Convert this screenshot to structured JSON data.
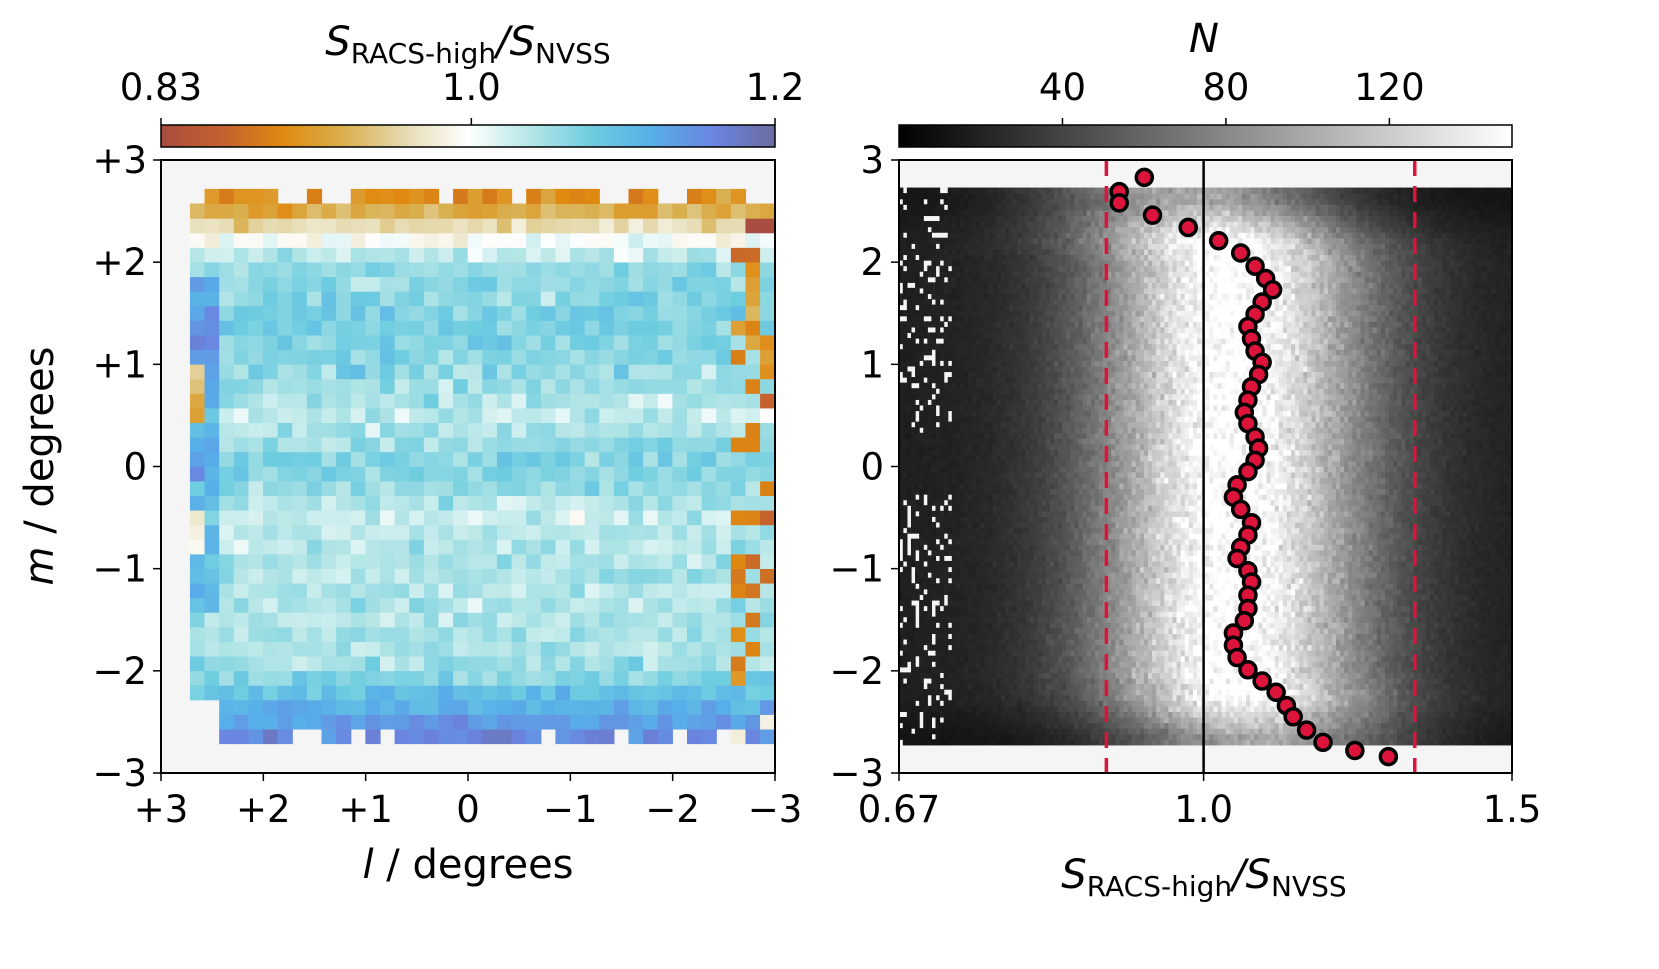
{
  "figure": {
    "panels": 2
  },
  "chart_data": [
    {
      "type": "heatmap",
      "name": "flux-ratio-map",
      "xlabel_var": "l",
      "xlabel_unit": " / degrees",
      "ylabel_var": "m",
      "ylabel_unit": " / degrees",
      "xlim": [
        3,
        -3
      ],
      "ylim": [
        -3,
        3
      ],
      "xticks": [
        3,
        2,
        1,
        0,
        -1,
        -2,
        -3
      ],
      "xtick_labels": [
        "+3",
        "+2",
        "+1",
        "0",
        "−1",
        "−2",
        "−3"
      ],
      "yticks": [
        3,
        2,
        1,
        0,
        -1,
        -2,
        -3
      ],
      "ytick_labels": [
        "+3",
        "+2",
        "+1",
        "0",
        "−1",
        "−2",
        "−3"
      ],
      "grid": false,
      "colorbar": {
        "position": "top",
        "label_main": "S",
        "label_sub1": "RACS-high",
        "label_slash": "/",
        "label_main2": "S",
        "label_sub2": "NVSS",
        "scale": "log",
        "range": [
          0.83,
          1.2
        ],
        "ticks": [
          0.83,
          1.0,
          1.2
        ],
        "tick_labels": [
          "0.83",
          "1.0",
          "1.2"
        ],
        "colors": [
          "#a84d3f",
          "#c4602f",
          "#e08a10",
          "#d9b050",
          "#e6dcb4",
          "#ffffff",
          "#b6e6e6",
          "#6fcde0",
          "#58aee8",
          "#6a84e0",
          "#6c6ca0"
        ]
      },
      "grid_bins": [
        42,
        42
      ],
      "row_mean_ratio_by_m": [
        {
          "m": 2.6,
          "ratio": 0.9
        },
        {
          "m": 2.4,
          "ratio": 0.95
        },
        {
          "m": 2.2,
          "ratio": 1.0
        },
        {
          "m": 2.0,
          "ratio": 1.05
        },
        {
          "m": 1.5,
          "ratio": 1.07
        },
        {
          "m": 1.0,
          "ratio": 1.06
        },
        {
          "m": 0.5,
          "ratio": 1.03
        },
        {
          "m": 0.0,
          "ratio": 1.07
        },
        {
          "m": -0.5,
          "ratio": 1.03
        },
        {
          "m": -1.0,
          "ratio": 1.04
        },
        {
          "m": -1.5,
          "ratio": 1.04
        },
        {
          "m": -2.0,
          "ratio": 1.05
        },
        {
          "m": -2.3,
          "ratio": 1.1
        },
        {
          "m": -2.6,
          "ratio": 1.15
        }
      ],
      "coverage_m_range": [
        -2.75,
        2.75
      ],
      "coverage_l_range": [
        -3,
        2.75
      ]
    },
    {
      "type": "heatmap",
      "name": "ratio-vs-m-histogram",
      "xlabel_main": "S",
      "xlabel_sub1": "RACS-high",
      "xlabel_slash": "/",
      "xlabel_main2": "S",
      "xlabel_sub2": "NVSS",
      "xscale": "log",
      "xlim": [
        0.67,
        1.5
      ],
      "ylim": [
        -3,
        3
      ],
      "xticks": [
        0.67,
        1.0,
        1.5
      ],
      "xtick_labels": [
        "0.67",
        "1.0",
        "1.5"
      ],
      "yticks": [
        3,
        2,
        1,
        0,
        -1,
        -2,
        -3
      ],
      "ytick_labels": [
        "3",
        "2",
        "1",
        "0",
        "−1",
        "−2",
        "−3"
      ],
      "grid": false,
      "colorbar": {
        "position": "top",
        "label": "N",
        "range": [
          0,
          150
        ],
        "ticks": [
          40,
          80,
          120
        ],
        "tick_labels": [
          "40",
          "80",
          "120"
        ],
        "colors": [
          "#000000",
          "#ffffff"
        ]
      },
      "reference_lines": [
        {
          "type": "solid",
          "x": 1.0,
          "color": "#000000"
        },
        {
          "type": "dashed",
          "x": 0.88,
          "color": "#dc143c"
        },
        {
          "type": "dashed",
          "x": 1.32,
          "color": "#dc143c"
        }
      ],
      "density_peak_ratio": 1.04,
      "density_width_log": 0.13,
      "density_coverage_m_range": [
        -2.75,
        2.7
      ],
      "marker_color": "#dc143c",
      "series": [
        {
          "name": "binned-median",
          "points": [
            {
              "x": 0.925,
              "y": 2.83
            },
            {
              "x": 0.895,
              "y": 2.69
            },
            {
              "x": 0.895,
              "y": 2.58
            },
            {
              "x": 0.935,
              "y": 2.46
            },
            {
              "x": 0.98,
              "y": 2.34
            },
            {
              "x": 1.02,
              "y": 2.21
            },
            {
              "x": 1.05,
              "y": 2.09
            },
            {
              "x": 1.07,
              "y": 1.96
            },
            {
              "x": 1.085,
              "y": 1.84
            },
            {
              "x": 1.095,
              "y": 1.73
            },
            {
              "x": 1.08,
              "y": 1.61
            },
            {
              "x": 1.07,
              "y": 1.49
            },
            {
              "x": 1.06,
              "y": 1.37
            },
            {
              "x": 1.065,
              "y": 1.25
            },
            {
              "x": 1.07,
              "y": 1.13
            },
            {
              "x": 1.08,
              "y": 1.02
            },
            {
              "x": 1.075,
              "y": 0.9
            },
            {
              "x": 1.065,
              "y": 0.78
            },
            {
              "x": 1.06,
              "y": 0.65
            },
            {
              "x": 1.055,
              "y": 0.53
            },
            {
              "x": 1.06,
              "y": 0.42
            },
            {
              "x": 1.07,
              "y": 0.29
            },
            {
              "x": 1.075,
              "y": 0.18
            },
            {
              "x": 1.07,
              "y": 0.06
            },
            {
              "x": 1.06,
              "y": -0.05
            },
            {
              "x": 1.045,
              "y": -0.18
            },
            {
              "x": 1.04,
              "y": -0.3
            },
            {
              "x": 1.05,
              "y": -0.42
            },
            {
              "x": 1.065,
              "y": -0.55
            },
            {
              "x": 1.06,
              "y": -0.67
            },
            {
              "x": 1.05,
              "y": -0.79
            },
            {
              "x": 1.045,
              "y": -0.9
            },
            {
              "x": 1.06,
              "y": -1.02
            },
            {
              "x": 1.065,
              "y": -1.13
            },
            {
              "x": 1.06,
              "y": -1.26
            },
            {
              "x": 1.06,
              "y": -1.39
            },
            {
              "x": 1.055,
              "y": -1.51
            },
            {
              "x": 1.04,
              "y": -1.63
            },
            {
              "x": 1.04,
              "y": -1.75
            },
            {
              "x": 1.045,
              "y": -1.87
            },
            {
              "x": 1.06,
              "y": -1.99
            },
            {
              "x": 1.08,
              "y": -2.1
            },
            {
              "x": 1.1,
              "y": -2.21
            },
            {
              "x": 1.115,
              "y": -2.34
            },
            {
              "x": 1.125,
              "y": -2.45
            },
            {
              "x": 1.145,
              "y": -2.58
            },
            {
              "x": 1.17,
              "y": -2.7
            },
            {
              "x": 1.22,
              "y": -2.78
            },
            {
              "x": 1.275,
              "y": -2.84
            }
          ]
        }
      ]
    }
  ]
}
